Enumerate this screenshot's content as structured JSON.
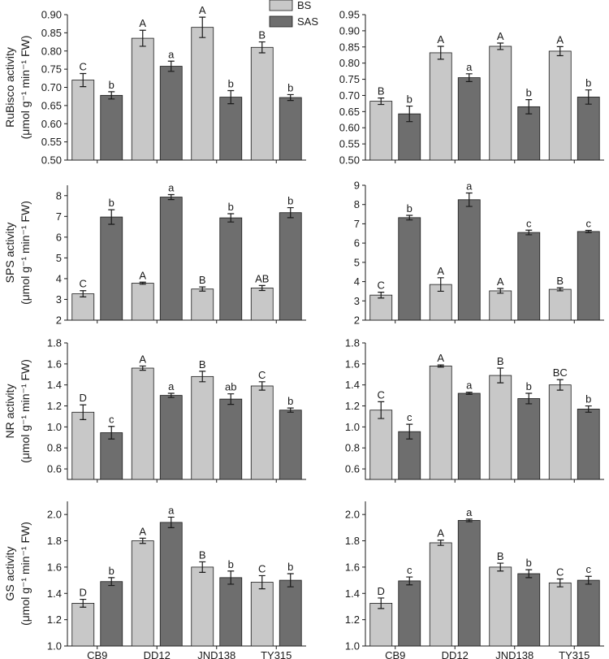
{
  "legend": {
    "items": [
      {
        "name": "BS",
        "color": "#c8c8c8"
      },
      {
        "name": "SAS",
        "color": "#6e6e6e"
      }
    ]
  },
  "chart_data": [
    {
      "type": "bar",
      "categories": [
        "CB9",
        "DD12",
        "JND138",
        "TY315"
      ],
      "ylabel_line1": "RuBisco activity",
      "ylabel_line2": "(μmol g⁻¹ min⁻¹ FW)",
      "ylim": [
        0.5,
        0.9
      ],
      "yticks": [
        "0.50",
        "0.55",
        "0.60",
        "0.65",
        "0.70",
        "0.75",
        "0.80",
        "0.85",
        "0.90"
      ],
      "series": [
        {
          "name": "BS",
          "values": [
            0.72,
            0.835,
            0.865,
            0.81
          ],
          "err": [
            0.018,
            0.022,
            0.028,
            0.015
          ],
          "letters": [
            "C",
            "A",
            "A",
            "B"
          ]
        },
        {
          "name": "SAS",
          "values": [
            0.678,
            0.758,
            0.673,
            0.672
          ],
          "err": [
            0.01,
            0.014,
            0.018,
            0.008
          ],
          "letters": [
            "b",
            "a",
            "b",
            "b"
          ]
        }
      ]
    },
    {
      "type": "bar",
      "categories": [
        "CB9",
        "DD12",
        "JND138",
        "TY315"
      ],
      "ylabel_line1": "",
      "ylabel_line2": "",
      "ylim": [
        0.5,
        0.95
      ],
      "yticks": [
        "0.50",
        "0.55",
        "0.60",
        "0.65",
        "0.70",
        "0.75",
        "0.80",
        "0.85",
        "0.90",
        "0.95"
      ],
      "series": [
        {
          "name": "BS",
          "values": [
            0.682,
            0.832,
            0.852,
            0.837
          ],
          "err": [
            0.01,
            0.02,
            0.01,
            0.014
          ],
          "letters": [
            "B",
            "A",
            "A",
            "A"
          ]
        },
        {
          "name": "SAS",
          "values": [
            0.643,
            0.755,
            0.665,
            0.695
          ],
          "err": [
            0.024,
            0.012,
            0.022,
            0.022
          ],
          "letters": [
            "b",
            "a",
            "b",
            "b"
          ]
        }
      ]
    },
    {
      "type": "bar",
      "categories": [
        "CB9",
        "DD12",
        "JND138",
        "TY315"
      ],
      "ylabel_line1": "SPS activity",
      "ylabel_line2": "(μmol g⁻¹ min⁻¹ FW)",
      "ylim": [
        2,
        8.5
      ],
      "yticks": [
        "2",
        "3",
        "4",
        "5",
        "6",
        "7",
        "8"
      ],
      "series": [
        {
          "name": "BS",
          "values": [
            3.27,
            3.78,
            3.5,
            3.55
          ],
          "err": [
            0.15,
            0.05,
            0.1,
            0.12
          ],
          "letters": [
            "C",
            "A",
            "B",
            "AB"
          ]
        },
        {
          "name": "SAS",
          "values": [
            6.97,
            7.93,
            6.93,
            7.18
          ],
          "err": [
            0.35,
            0.12,
            0.2,
            0.24
          ],
          "letters": [
            "b",
            "a",
            "b",
            "b"
          ]
        }
      ]
    },
    {
      "type": "bar",
      "categories": [
        "CB9",
        "DD12",
        "JND138",
        "TY315"
      ],
      "ylabel_line1": "",
      "ylabel_line2": "",
      "ylim": [
        2,
        9
      ],
      "yticks": [
        "2",
        "3",
        "4",
        "5",
        "6",
        "7",
        "8",
        "9"
      ],
      "series": [
        {
          "name": "BS",
          "values": [
            3.3,
            3.85,
            3.52,
            3.6
          ],
          "err": [
            0.15,
            0.35,
            0.12,
            0.08
          ],
          "letters": [
            "C",
            "A",
            "A",
            "B"
          ]
        },
        {
          "name": "SAS",
          "values": [
            7.32,
            8.25,
            6.55,
            6.6
          ],
          "err": [
            0.12,
            0.35,
            0.12,
            0.06
          ],
          "letters": [
            "b",
            "a",
            "c",
            "c"
          ]
        }
      ]
    },
    {
      "type": "bar",
      "categories": [
        "CB9",
        "DD12",
        "JND138",
        "TY315"
      ],
      "ylabel_line1": "NR activity",
      "ylabel_line2": "(μmol g⁻¹ min⁻¹ FW)",
      "ylim": [
        0.5,
        1.8
      ],
      "yticks": [
        "0.6",
        "0.8",
        "1.0",
        "1.2",
        "1.4",
        "1.6",
        "1.8"
      ],
      "series": [
        {
          "name": "BS",
          "values": [
            1.14,
            1.56,
            1.48,
            1.39
          ],
          "err": [
            0.07,
            0.02,
            0.05,
            0.04
          ],
          "letters": [
            "D",
            "A",
            "B",
            "C"
          ]
        },
        {
          "name": "SAS",
          "values": [
            0.945,
            1.3,
            1.265,
            1.16
          ],
          "err": [
            0.06,
            0.02,
            0.05,
            0.02
          ],
          "letters": [
            "c",
            "a",
            "ab",
            "b"
          ]
        }
      ]
    },
    {
      "type": "bar",
      "categories": [
        "CB9",
        "DD12",
        "JND138",
        "TY315"
      ],
      "ylabel_line1": "",
      "ylabel_line2": "",
      "ylim": [
        0.5,
        1.8
      ],
      "yticks": [
        "0.6",
        "0.8",
        "1.0",
        "1.2",
        "1.4",
        "1.6",
        "1.8"
      ],
      "series": [
        {
          "name": "BS",
          "values": [
            1.16,
            1.58,
            1.49,
            1.4
          ],
          "err": [
            0.08,
            0.01,
            0.07,
            0.05
          ],
          "letters": [
            "C",
            "A",
            "B",
            "BC"
          ]
        },
        {
          "name": "SAS",
          "values": [
            0.955,
            1.32,
            1.27,
            1.17
          ],
          "err": [
            0.07,
            0.01,
            0.05,
            0.03
          ],
          "letters": [
            "c",
            "a",
            "b",
            "b"
          ]
        }
      ]
    },
    {
      "type": "bar",
      "categories": [
        "CB9",
        "DD12",
        "JND138",
        "TY315"
      ],
      "ylabel_line1": "GS activity",
      "ylabel_line2": "(μmol g⁻¹ min⁻¹ FW)",
      "ylim": [
        1.0,
        2.1
      ],
      "yticks": [
        "1.0",
        "1.2",
        "1.4",
        "1.6",
        "1.8",
        "2.0"
      ],
      "series": [
        {
          "name": "BS",
          "values": [
            1.325,
            1.8,
            1.6,
            1.485
          ],
          "err": [
            0.03,
            0.02,
            0.04,
            0.05
          ],
          "letters": [
            "D",
            "A",
            "B",
            "C"
          ]
        },
        {
          "name": "SAS",
          "values": [
            1.49,
            1.94,
            1.52,
            1.5
          ],
          "err": [
            0.03,
            0.04,
            0.05,
            0.05
          ],
          "letters": [
            "b",
            "a",
            "b",
            "b"
          ]
        }
      ]
    },
    {
      "type": "bar",
      "categories": [
        "CB9",
        "DD12",
        "JND138",
        "TY315"
      ],
      "ylabel_line1": "",
      "ylabel_line2": "",
      "ylim": [
        1.0,
        2.1
      ],
      "yticks": [
        "1.0",
        "1.2",
        "1.4",
        "1.6",
        "1.8",
        "2.0"
      ],
      "series": [
        {
          "name": "BS",
          "values": [
            1.325,
            1.785,
            1.6,
            1.48
          ],
          "err": [
            0.04,
            0.02,
            0.03,
            0.03
          ],
          "letters": [
            "D",
            "A",
            "B",
            "C"
          ]
        },
        {
          "name": "SAS",
          "values": [
            1.495,
            1.955,
            1.55,
            1.5
          ],
          "err": [
            0.03,
            0.01,
            0.03,
            0.03
          ],
          "letters": [
            "c",
            "a",
            "b",
            "c"
          ]
        }
      ]
    }
  ]
}
